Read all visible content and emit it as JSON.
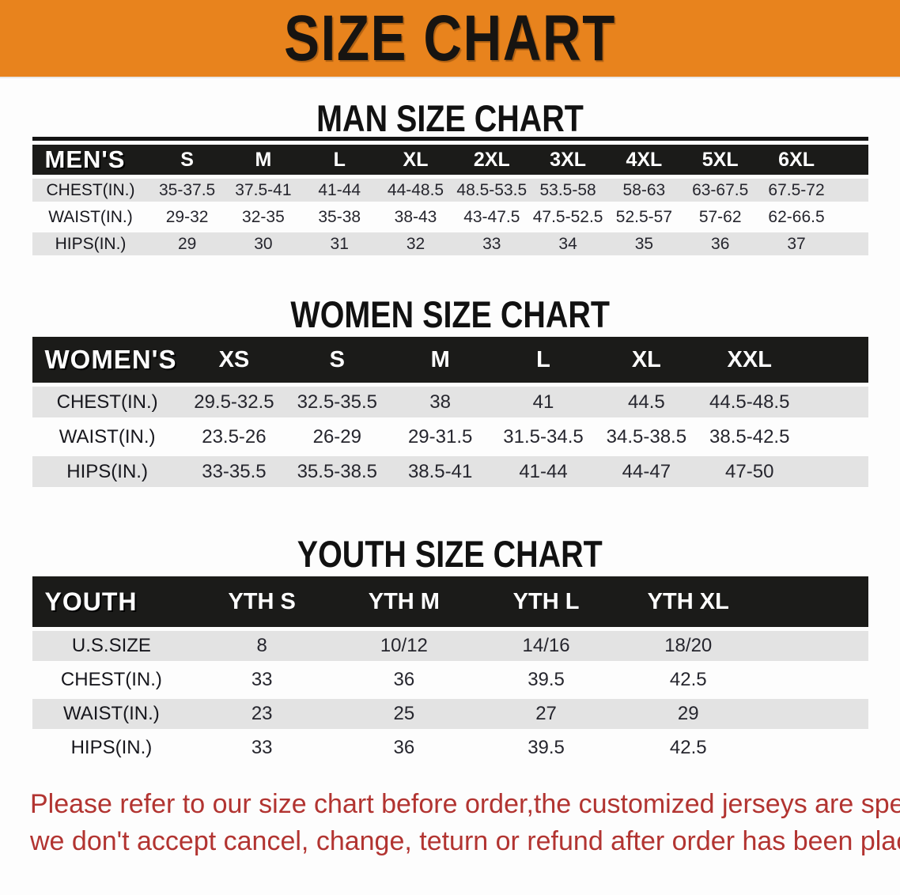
{
  "banner": {
    "title": "SIZE CHART"
  },
  "sections": [
    {
      "heading": "MAN SIZE CHART",
      "table": {
        "header": [
          "MEN'S",
          "S",
          "M",
          "L",
          "XL",
          "2XL",
          "3XL",
          "4XL",
          "5XL",
          "6XL"
        ],
        "rows": [
          [
            "CHEST(IN.)",
            "35-37.5",
            "37.5-41",
            "41-44",
            "44-48.5",
            "48.5-53.5",
            "53.5-58",
            "58-63",
            "63-67.5",
            "67.5-72"
          ],
          [
            "WAIST(IN.)",
            "29-32",
            "32-35",
            "35-38",
            "38-43",
            "43-47.5",
            "47.5-52.5",
            "52.5-57",
            "57-62",
            "62-66.5"
          ],
          [
            "HIPS(IN.)",
            "29",
            "30",
            "31",
            "32",
            "33",
            "34",
            "35",
            "36",
            "37"
          ]
        ]
      }
    },
    {
      "heading": "WOMEN SIZE CHART",
      "table": {
        "header": [
          "WOMEN'S",
          "XS",
          "S",
          "M",
          "L",
          "XL",
          "XXL"
        ],
        "rows": [
          [
            "CHEST(IN.)",
            "29.5-32.5",
            "32.5-35.5",
            "38",
            "41",
            "44.5",
            "44.5-48.5"
          ],
          [
            "WAIST(IN.)",
            "23.5-26",
            "26-29",
            "29-31.5",
            "31.5-34.5",
            "34.5-38.5",
            "38.5-42.5"
          ],
          [
            "HIPS(IN.)",
            "33-35.5",
            "35.5-38.5",
            "38.5-41",
            "41-44",
            "44-47",
            "47-50"
          ]
        ]
      }
    },
    {
      "heading": "YOUTH SIZE CHART",
      "table": {
        "header": [
          "YOUTH",
          "YTH S",
          "YTH M",
          "YTH L",
          "YTH XL"
        ],
        "rows": [
          [
            "U.S.SIZE",
            "8",
            "10/12",
            "14/16",
            "18/20"
          ],
          [
            "CHEST(IN.)",
            "33",
            "36",
            "39.5",
            "42.5"
          ],
          [
            "WAIST(IN.)",
            "23",
            "25",
            "27",
            "29"
          ],
          [
            "HIPS(IN.)",
            "33",
            "36",
            "39.5",
            "42.5"
          ]
        ]
      }
    }
  ],
  "footer": {
    "lines": [
      "Please refer to our size chart before order,the customized jerseys are special products,",
      "we don't accept cancel, change, teturn or refund after order has been placed!"
    ]
  },
  "colors": {
    "banner_bg": "#e8831d",
    "header_bg": "#1b1b19",
    "row_alt_bg": "#e3e3e3",
    "footer_text": "#b23431"
  }
}
